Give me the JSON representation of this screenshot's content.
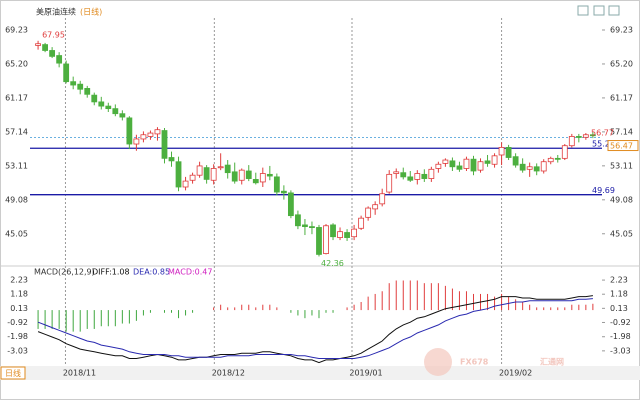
{
  "chart_data": {
    "type": "candlestick",
    "title": "美原油连续",
    "period": "(日线)",
    "period_tab": "日线",
    "watermark": [
      "FX678",
      "汇通网"
    ],
    "up_color": "#e03c3c",
    "down_color": "#4caf3f",
    "ylim": [
      41.7,
      70.18
    ],
    "yticks": [
      {
        "value": 69.23,
        "label": "69.23"
      },
      {
        "value": 65.2,
        "label": "65.20"
      },
      {
        "value": 61.17,
        "label": "61.17"
      },
      57.14,
      53.11,
      49.08,
      45.05
    ],
    "xlim": [
      -1.15,
      80.3
    ],
    "xticks": [
      {
        "value": 3.9,
        "label": "2018/11"
      },
      {
        "value": 25.1,
        "label": "2018/12"
      },
      {
        "value": 44.7,
        "label": "2019/01"
      },
      {
        "value": 66,
        "label": "2019/02"
      }
    ],
    "ohlc": [
      [
        67.4,
        67.95,
        66.9,
        67.6
      ],
      [
        67.5,
        67.7,
        66.6,
        66.8
      ],
      [
        66.8,
        67.2,
        65.9,
        66.1
      ],
      [
        66.2,
        66.6,
        64.8,
        65.3
      ],
      [
        65.2,
        65.6,
        62.9,
        63.1
      ],
      [
        63.1,
        63.7,
        62.2,
        62.7
      ],
      [
        62.8,
        63.2,
        61.6,
        62.2
      ],
      [
        62.3,
        62.6,
        61.2,
        61.6
      ],
      [
        61.5,
        61.8,
        60.3,
        60.7
      ],
      [
        60.7,
        61.3,
        59.8,
        60.2
      ],
      [
        60.2,
        60.6,
        59.5,
        59.9
      ],
      [
        59.9,
        60.4,
        59.0,
        59.3
      ],
      [
        59.3,
        59.7,
        58.5,
        58.9
      ],
      [
        58.8,
        59.0,
        55.1,
        55.7
      ],
      [
        55.7,
        56.8,
        54.9,
        56.3
      ],
      [
        56.3,
        57.2,
        55.9,
        56.8
      ],
      [
        56.6,
        57.3,
        56.2,
        57.0
      ],
      [
        56.9,
        57.7,
        56.1,
        57.4
      ],
      [
        57.3,
        57.6,
        53.4,
        54.0
      ],
      [
        54.1,
        54.8,
        53.0,
        53.7
      ],
      [
        53.6,
        54.2,
        50.1,
        50.6
      ],
      [
        50.6,
        51.8,
        50.2,
        51.3
      ],
      [
        51.4,
        52.3,
        51.0,
        52.0
      ],
      [
        52.0,
        53.6,
        51.7,
        53.1
      ],
      [
        52.9,
        53.2,
        51.0,
        51.5
      ],
      [
        51.4,
        53.3,
        50.9,
        52.8
      ],
      [
        52.9,
        54.6,
        52.6,
        53.0
      ],
      [
        53.2,
        53.8,
        51.6,
        52.3
      ],
      [
        52.4,
        53.5,
        51.0,
        51.3
      ],
      [
        51.4,
        52.8,
        50.9,
        52.6
      ],
      [
        52.5,
        53.2,
        51.3,
        51.6
      ],
      [
        51.5,
        52.3,
        50.9,
        51.1
      ],
      [
        51.2,
        52.9,
        50.6,
        52.2
      ],
      [
        52.1,
        53.1,
        51.4,
        51.9
      ],
      [
        51.8,
        52.2,
        49.6,
        50.0
      ],
      [
        50.1,
        50.8,
        49.1,
        49.9
      ],
      [
        49.9,
        50.2,
        46.9,
        47.2
      ],
      [
        47.3,
        47.8,
        45.6,
        46.0
      ],
      [
        46.1,
        46.8,
        44.9,
        45.9
      ],
      [
        45.9,
        46.5,
        45.0,
        45.8
      ],
      [
        45.8,
        46.1,
        42.36,
        42.6
      ],
      [
        42.7,
        46.2,
        42.6,
        46.0
      ],
      [
        46.1,
        46.3,
        44.3,
        44.7
      ],
      [
        44.6,
        45.8,
        44.3,
        45.3
      ],
      [
        45.2,
        45.6,
        44.2,
        44.6
      ],
      [
        44.7,
        46.1,
        44.3,
        45.6
      ],
      [
        45.7,
        47.2,
        45.5,
        46.9
      ],
      [
        47.0,
        48.3,
        46.6,
        48.1
      ],
      [
        48.0,
        48.9,
        47.3,
        48.5
      ],
      [
        48.6,
        50.4,
        48.3,
        49.8
      ],
      [
        50.0,
        52.6,
        49.8,
        52.1
      ],
      [
        52.2,
        52.8,
        51.6,
        52.4
      ],
      [
        52.3,
        52.9,
        51.5,
        51.8
      ],
      [
        51.8,
        52.5,
        51.2,
        51.4
      ],
      [
        51.5,
        52.6,
        50.9,
        52.2
      ],
      [
        52.1,
        52.7,
        51.2,
        51.6
      ],
      [
        51.6,
        53.0,
        51.2,
        52.7
      ],
      [
        52.8,
        53.6,
        52.3,
        53.3
      ],
      [
        53.4,
        54.0,
        53.0,
        53.8
      ],
      [
        53.7,
        54.1,
        52.5,
        53.0
      ],
      [
        53.1,
        53.6,
        52.4,
        52.7
      ],
      [
        52.8,
        54.2,
        52.5,
        53.9
      ],
      [
        53.9,
        54.3,
        52.0,
        52.5
      ],
      [
        52.6,
        54.0,
        52.3,
        53.6
      ],
      [
        53.7,
        54.4,
        53.0,
        53.4
      ],
      [
        53.3,
        54.6,
        52.9,
        54.3
      ],
      [
        54.4,
        55.9,
        53.2,
        55.3
      ],
      [
        55.3,
        55.6,
        53.8,
        54.1
      ],
      [
        54.2,
        54.6,
        52.9,
        53.2
      ],
      [
        53.3,
        54.0,
        52.3,
        52.6
      ],
      [
        52.7,
        53.5,
        51.8,
        53.0
      ],
      [
        53.0,
        53.4,
        52.0,
        52.5
      ],
      [
        52.5,
        53.9,
        52.2,
        53.6
      ],
      [
        53.6,
        54.2,
        53.3,
        54.0
      ],
      [
        54.0,
        54.4,
        53.5,
        53.9
      ],
      [
        54.0,
        55.7,
        53.8,
        55.5
      ],
      [
        55.5,
        56.9,
        55.3,
        56.6
      ],
      [
        56.6,
        56.9,
        55.9,
        56.5
      ],
      [
        56.5,
        57.0,
        56.2,
        56.8
      ],
      [
        56.8,
        57.1,
        56.4,
        56.77
      ]
    ],
    "lines": [
      {
        "value": 55.2,
        "label": "55.20",
        "color": "#1a1aa6"
      },
      {
        "value": 49.69,
        "label": "49.69",
        "color": "#1a1aa6"
      }
    ],
    "dotted_line": {
      "value": 56.47,
      "color": "#6ab0e0",
      "label_color": "#e08a1e"
    },
    "macd": {
      "title": "MACD(26,12,9)",
      "ylim": [
        -4.08,
        2.83
      ],
      "yticks": [
        2.23,
        1.18,
        0.13,
        -0.92,
        -1.98,
        -3.03
      ],
      "diff": {
        "legend": "DIFF:1.08",
        "color": "#111111",
        "values": [
          -1.6,
          -1.8,
          -2.0,
          -2.2,
          -2.5,
          -2.7,
          -2.9,
          -3.0,
          -3.1,
          -3.2,
          -3.3,
          -3.4,
          -3.4,
          -3.6,
          -3.6,
          -3.5,
          -3.4,
          -3.3,
          -3.4,
          -3.5,
          -3.7,
          -3.7,
          -3.6,
          -3.5,
          -3.5,
          -3.4,
          -3.3,
          -3.3,
          -3.3,
          -3.2,
          -3.2,
          -3.2,
          -3.1,
          -3.1,
          -3.2,
          -3.3,
          -3.4,
          -3.6,
          -3.7,
          -3.7,
          -3.9,
          -3.7,
          -3.7,
          -3.6,
          -3.5,
          -3.4,
          -3.2,
          -2.9,
          -2.6,
          -2.3,
          -1.8,
          -1.4,
          -1.1,
          -0.9,
          -0.6,
          -0.5,
          -0.3,
          -0.1,
          0.1,
          0.2,
          0.3,
          0.4,
          0.5,
          0.6,
          0.7,
          0.8,
          1.0,
          1.0,
          1.0,
          0.9,
          0.9,
          0.8,
          0.8,
          0.8,
          0.8,
          0.8,
          0.9,
          1.0,
          1.0,
          1.08
        ]
      },
      "dea": {
        "legend": "DEA:0.85",
        "color": "#2a2ab0",
        "values": [
          -0.9,
          -1.1,
          -1.3,
          -1.5,
          -1.7,
          -1.9,
          -2.1,
          -2.3,
          -2.4,
          -2.6,
          -2.7,
          -2.8,
          -2.9,
          -3.1,
          -3.2,
          -3.3,
          -3.3,
          -3.3,
          -3.3,
          -3.4,
          -3.4,
          -3.5,
          -3.5,
          -3.5,
          -3.5,
          -3.5,
          -3.5,
          -3.4,
          -3.4,
          -3.4,
          -3.4,
          -3.3,
          -3.3,
          -3.3,
          -3.3,
          -3.3,
          -3.3,
          -3.4,
          -3.4,
          -3.5,
          -3.6,
          -3.6,
          -3.6,
          -3.6,
          -3.6,
          -3.6,
          -3.5,
          -3.4,
          -3.2,
          -3.0,
          -2.8,
          -2.5,
          -2.2,
          -2.0,
          -1.7,
          -1.5,
          -1.3,
          -1.1,
          -0.8,
          -0.6,
          -0.4,
          -0.3,
          -0.1,
          0.0,
          0.1,
          0.3,
          0.4,
          0.5,
          0.6,
          0.6,
          0.7,
          0.7,
          0.7,
          0.7,
          0.7,
          0.7,
          0.7,
          0.8,
          0.8,
          0.85
        ]
      },
      "hist": {
        "legend": "MACD:0.47",
        "legend_color": "#d020c0",
        "up_color": "#e03c3c",
        "down_color": "#3ea63e",
        "values": [
          -1.4,
          -1.4,
          -1.4,
          -1.4,
          -1.6,
          -1.6,
          -1.6,
          -1.4,
          -1.4,
          -1.2,
          -1.2,
          -1.2,
          -1.0,
          -1.0,
          -0.8,
          -0.4,
          -0.2,
          0.0,
          -0.2,
          -0.2,
          -0.6,
          -0.4,
          -0.2,
          0.0,
          0.0,
          0.2,
          0.4,
          0.2,
          0.2,
          0.4,
          0.4,
          0.2,
          0.4,
          0.4,
          0.2,
          0.0,
          -0.2,
          -0.4,
          -0.6,
          -0.4,
          -0.6,
          -0.2,
          -0.2,
          0.0,
          0.2,
          0.4,
          0.6,
          1.0,
          1.2,
          1.4,
          2.0,
          2.2,
          2.2,
          2.2,
          2.2,
          2.0,
          2.0,
          2.0,
          1.8,
          1.6,
          1.4,
          1.4,
          1.2,
          1.2,
          1.2,
          1.0,
          1.2,
          1.0,
          0.8,
          0.6,
          0.4,
          0.2,
          0.2,
          0.2,
          0.2,
          0.2,
          0.4,
          0.4,
          0.4,
          0.47
        ]
      }
    }
  }
}
